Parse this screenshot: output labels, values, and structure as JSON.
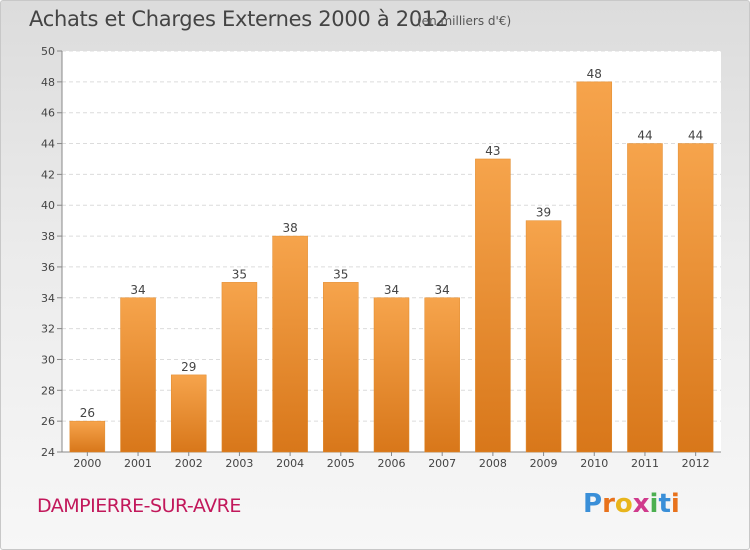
{
  "header": {
    "title": "Achats et Charges Externes 2000 à 2012",
    "unit": "(en milliers d'€)"
  },
  "footer": {
    "commune": "DAMPIERRE-SUR-AVRE",
    "logo_text": "Proxiti"
  },
  "colors": {
    "bar_top": "#f6a44c",
    "bar_bottom": "#d8771a",
    "commune_text": "#c2185b",
    "logo_letters": [
      "#3a8fd8",
      "#e8721c",
      "#e8b51c",
      "#d03a8c",
      "#4caf50",
      "#3a8fd8",
      "#e8721c"
    ]
  },
  "chart_data": {
    "type": "bar",
    "categories": [
      "2000",
      "2001",
      "2002",
      "2003",
      "2004",
      "2005",
      "2006",
      "2007",
      "2008",
      "2009",
      "2010",
      "2011",
      "2012"
    ],
    "values": [
      26,
      34,
      29,
      35,
      38,
      35,
      34,
      34,
      43,
      39,
      48,
      44,
      44
    ],
    "title": "Achats et Charges Externes 2000 à 2012",
    "subtitle": "(en milliers d'€)",
    "ylim": [
      24,
      50
    ],
    "yticks": [
      24,
      26,
      28,
      30,
      32,
      34,
      36,
      38,
      40,
      42,
      44,
      46,
      48,
      50
    ],
    "grid": true,
    "data_labels": true
  }
}
